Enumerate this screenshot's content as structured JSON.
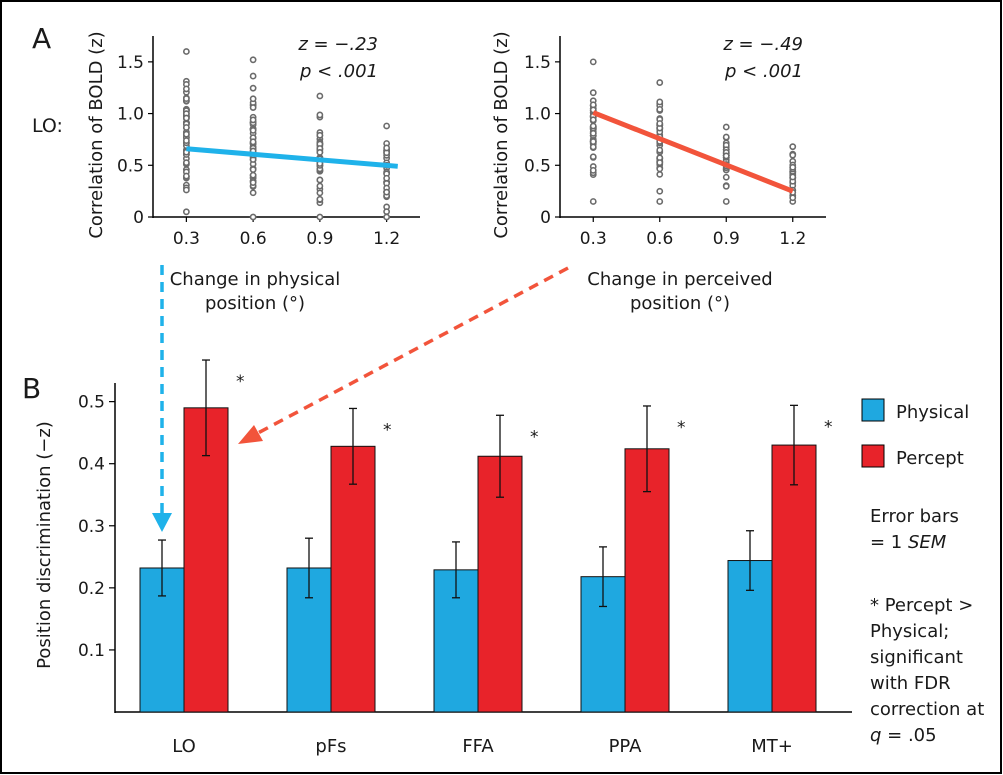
{
  "colors": {
    "physical": "#1fa8e0",
    "percept": "#e8232a",
    "line_physical": "#1fb2ea",
    "line_percept": "#f2543b",
    "scatter_point": "#6b6b6b",
    "border": "#000000"
  },
  "panels": {
    "a_label": "A",
    "b_label": "B",
    "roi_label": "LO:"
  },
  "chart_data": [
    {
      "type": "scatter",
      "panel": "A",
      "annotation_stat": "z = −.23",
      "annotation_p": "p < .001",
      "xlabel_line1": "Change in physical",
      "xlabel_line2": "position (°)",
      "ylabel": "Correlation of BOLD (z)",
      "x_ticks": [
        "0.3",
        "0.6",
        "0.9",
        "1.2"
      ],
      "y_ticks": [
        "0",
        "0.5",
        "1.0",
        "1.5"
      ],
      "xlim": [
        0.15,
        1.35
      ],
      "ylim": [
        0,
        1.75
      ],
      "x_groups": [
        0.3,
        0.6,
        0.9,
        1.2
      ],
      "y_ranges": [
        [
          0.05,
          1.6
        ],
        [
          0.0,
          1.52
        ],
        [
          0.0,
          1.17
        ],
        [
          0.0,
          0.88
        ]
      ],
      "points_per_group": [
        58,
        52,
        44,
        30
      ],
      "fit_line": {
        "x": [
          0.3,
          1.25
        ],
        "y": [
          0.66,
          0.49
        ]
      }
    },
    {
      "type": "scatter",
      "panel": "A",
      "annotation_stat": "z = −.49",
      "annotation_p": "p < .001",
      "xlabel_line1": "Change in perceived",
      "xlabel_line2": "position (°)",
      "ylabel": "Correlation of BOLD (z)",
      "x_ticks": [
        "0.3",
        "0.6",
        "0.9",
        "1.2"
      ],
      "y_ticks": [
        "0",
        "0.5",
        "1.0",
        "1.5"
      ],
      "xlim": [
        0.15,
        1.35
      ],
      "ylim": [
        0,
        1.75
      ],
      "x_groups": [
        0.3,
        0.6,
        0.9,
        1.2
      ],
      "y_ranges": [
        [
          0.15,
          1.5
        ],
        [
          0.15,
          1.3
        ],
        [
          0.15,
          0.87
        ],
        [
          0.15,
          0.68
        ]
      ],
      "points_per_group": [
        60,
        50,
        40,
        28
      ],
      "fit_line": {
        "x": [
          0.3,
          1.2
        ],
        "y": [
          1.01,
          0.25
        ]
      }
    },
    {
      "type": "bar",
      "panel": "B",
      "categories": [
        "LO",
        "pFs",
        "FFA",
        "PPA",
        "MT+"
      ],
      "series": [
        {
          "name": "Physical",
          "values": [
            0.232,
            0.232,
            0.229,
            0.218,
            0.244
          ],
          "sem": [
            0.045,
            0.048,
            0.045,
            0.048,
            0.048
          ]
        },
        {
          "name": "Percept",
          "values": [
            0.49,
            0.428,
            0.412,
            0.424,
            0.43
          ],
          "sem": [
            0.077,
            0.061,
            0.066,
            0.069,
            0.064
          ]
        }
      ],
      "significance_marker": "*",
      "ylabel": "Position discrimination (−z)",
      "y_ticks": [
        "0.1",
        "0.2",
        "0.3",
        "0.4",
        "0.5"
      ],
      "ylim": [
        0,
        0.53
      ],
      "legend_placement": "right",
      "notes": {
        "error_bars_line1": "Error bars",
        "error_bars_line2_prefix": "= 1 ",
        "error_bars_line2_italic": "SEM",
        "sig_line1": "* Percept >",
        "sig_line2": "Physical;",
        "sig_line3": "significant",
        "sig_line4": "with FDR",
        "sig_line5": "correction at",
        "sig_line6_italic": "q",
        "sig_line6_rest": " = .05"
      }
    }
  ]
}
